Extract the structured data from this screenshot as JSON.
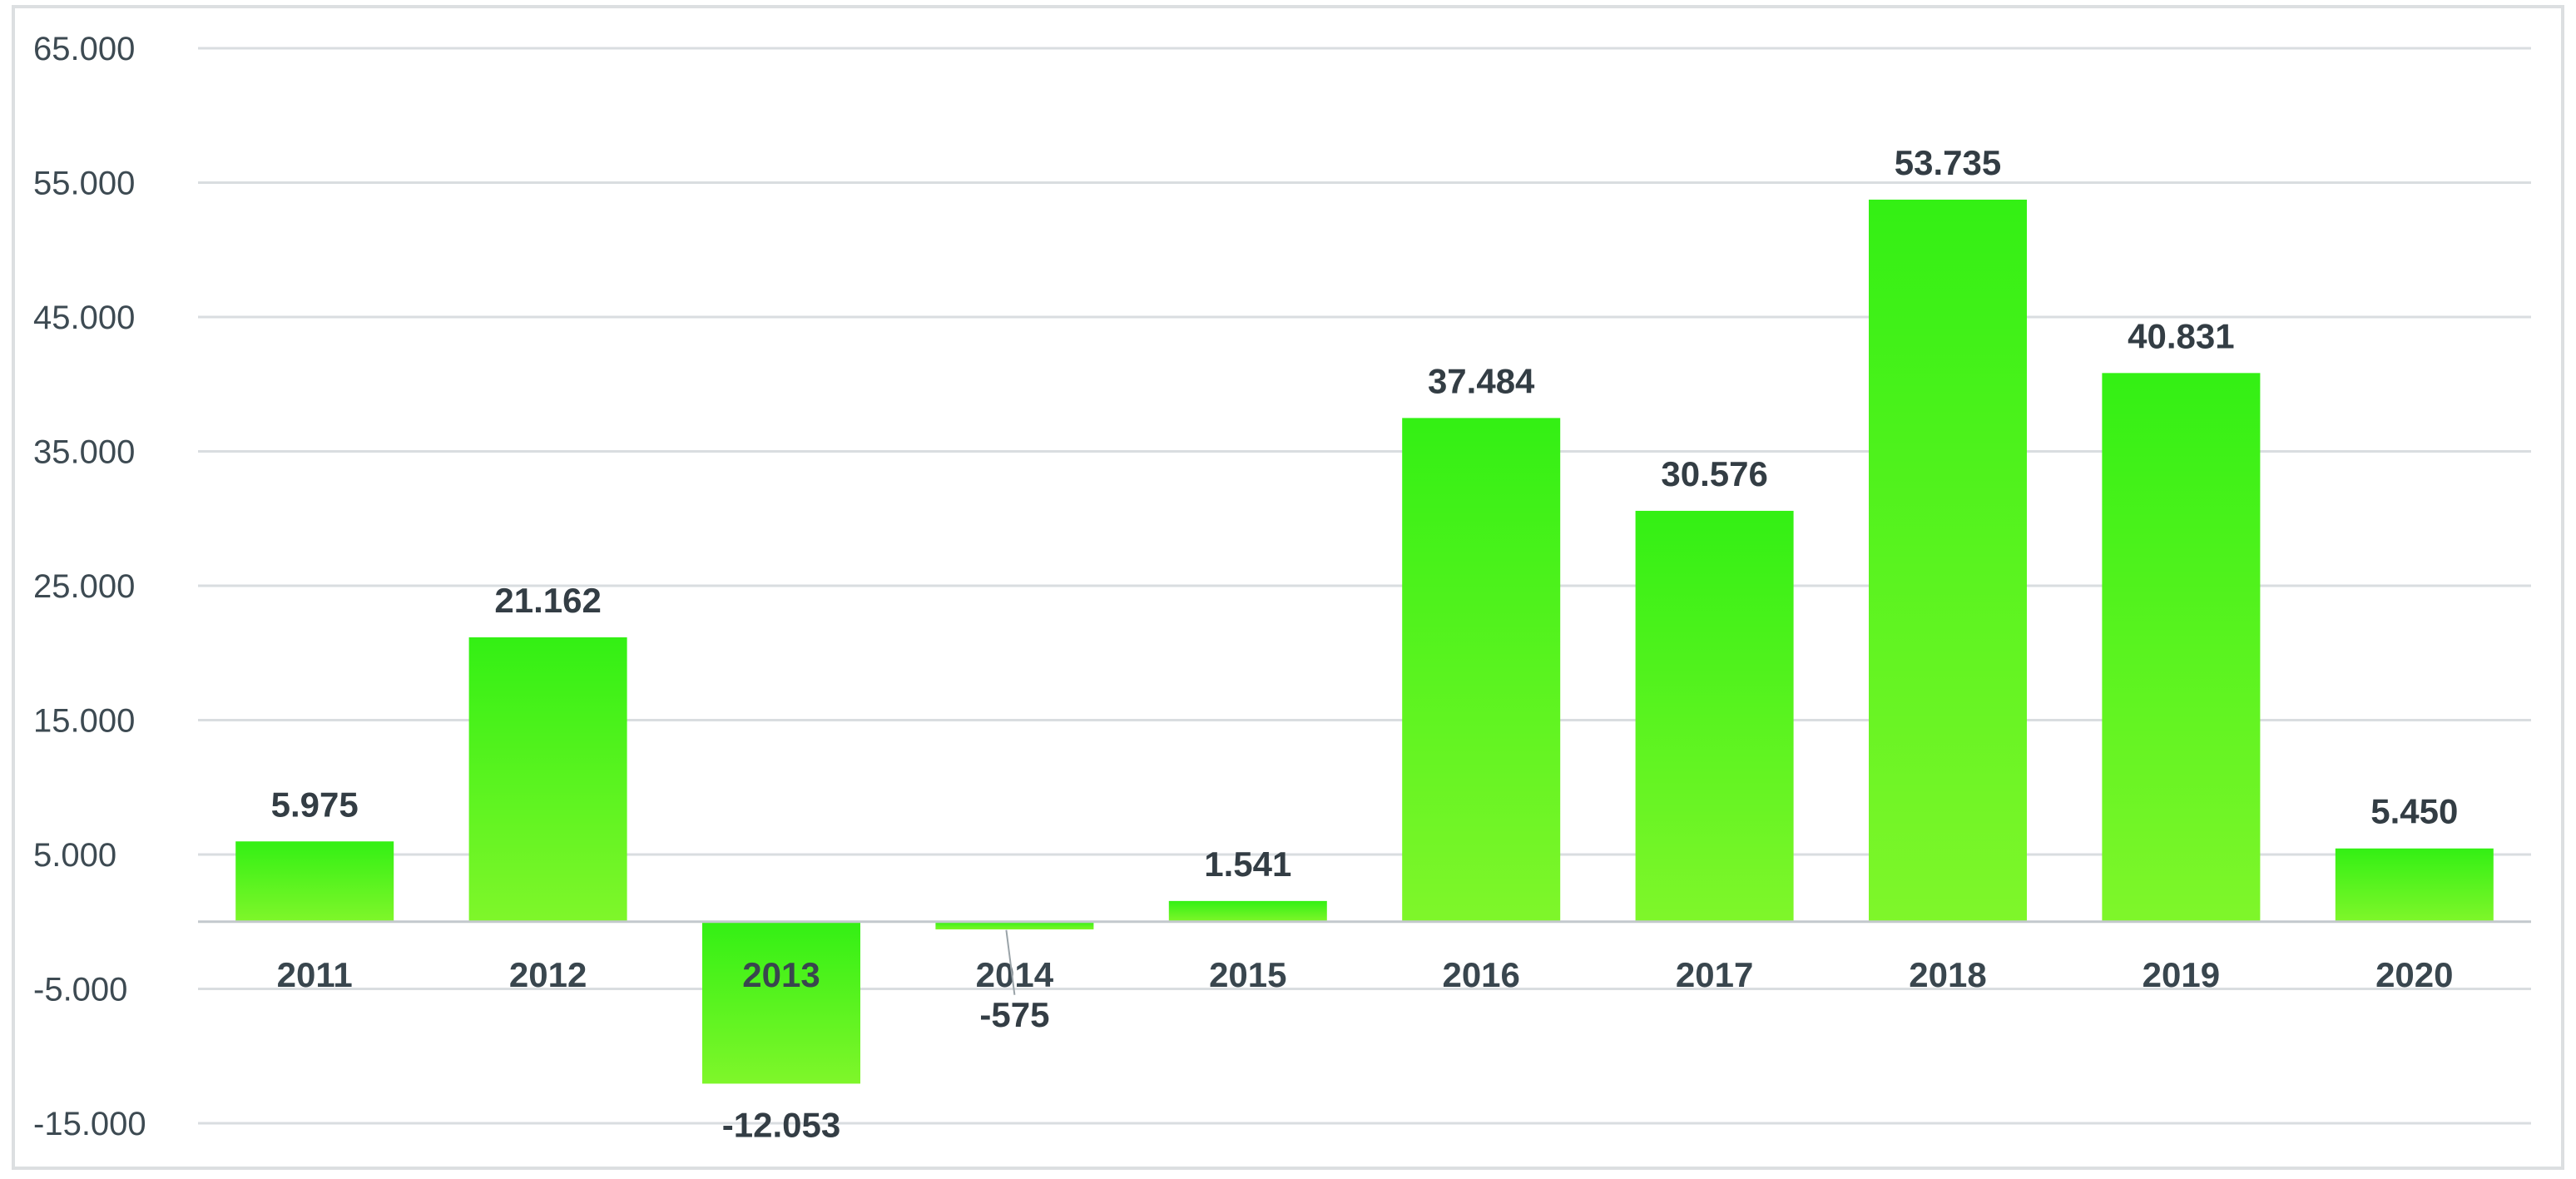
{
  "chart_data": {
    "type": "bar",
    "categories": [
      "2011",
      "2012",
      "2013",
      "2014",
      "2015",
      "2016",
      "2017",
      "2018",
      "2019",
      "2020"
    ],
    "values": [
      5975,
      21162,
      -12053,
      -575,
      1541,
      37484,
      30576,
      53735,
      40831,
      5450
    ],
    "value_labels": [
      "5.975",
      "21.162",
      "-12.053",
      "-575",
      "1.541",
      "37.484",
      "30.576",
      "53.735",
      "40.831",
      "5.450"
    ],
    "yticks": [
      65000,
      55000,
      45000,
      35000,
      25000,
      15000,
      5000,
      -5000,
      -15000
    ],
    "ytick_labels": [
      "65.000",
      "55.000",
      "45.000",
      "35.000",
      "25.000",
      "15.000",
      "5.000",
      "-5.000",
      "-15.000"
    ],
    "ylim": [
      -15000,
      65000
    ],
    "title": "",
    "xlabel": "",
    "ylabel": "",
    "grid": true,
    "legend": "none",
    "colors": {
      "bar_top": "#33f014",
      "bar_bottom": "#7ff62a",
      "grid": "#d9dde0",
      "frame": "#dcdfe1"
    }
  }
}
